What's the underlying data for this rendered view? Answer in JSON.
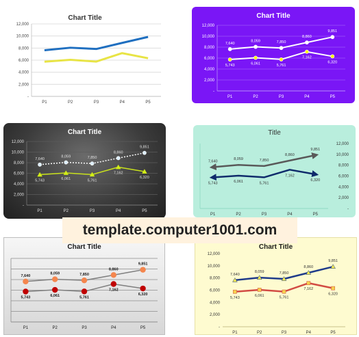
{
  "watermark": "template.computer1001.com",
  "chart_data": [
    {
      "type": "line",
      "title": "Chart Title",
      "categories": [
        "P1",
        "P2",
        "P3",
        "P4",
        "P5"
      ],
      "series": [
        {
          "values": [
            7640,
            8059,
            7850,
            8860,
            9851
          ],
          "color": "#1f6fc0"
        },
        {
          "values": [
            5743,
            6061,
            5761,
            7162,
            6320
          ],
          "color": "#e8e445"
        }
      ],
      "ylim": [
        0,
        12000
      ],
      "yticks": [
        "-",
        "2,000",
        "4,000",
        "6,000",
        "8,000",
        "10,000",
        "12,000"
      ],
      "grid": true,
      "data_labels": false,
      "markers": false,
      "theme": {
        "bg": "#ffffff",
        "text": "#404040",
        "title": "#333333",
        "grid": "#d9d9d9",
        "axis": "#bfbfbf"
      }
    },
    {
      "type": "line",
      "title": "Chart Title",
      "categories": [
        "P1",
        "P2",
        "P3",
        "P4",
        "P5"
      ],
      "series": [
        {
          "values": [
            7640,
            8059,
            7850,
            8860,
            9851
          ],
          "color": "#ffffff",
          "marker_fill": "#ffffff",
          "marker": "circle"
        },
        {
          "values": [
            5743,
            6061,
            5761,
            7162,
            6320
          ],
          "color": "#ffffff",
          "marker_fill": "#ffff00",
          "marker": "circle"
        }
      ],
      "ylim": [
        0,
        12000
      ],
      "yticks": [
        "-",
        "2,000",
        "4,000",
        "6,000",
        "8,000",
        "10,000",
        "12,000"
      ],
      "grid": true,
      "data_labels": true,
      "theme": {
        "bg": "#7a16f6",
        "text": "#ffffff",
        "title": "#ffffff",
        "grid": "#9a55f8",
        "axis": "#b58cf9"
      }
    },
    {
      "type": "line",
      "title": "Chart Title",
      "categories": [
        "P1",
        "P2",
        "P3",
        "P4",
        "P5"
      ],
      "series": [
        {
          "values": [
            7640,
            8059,
            7850,
            8860,
            9851
          ],
          "color": "#ffffff",
          "dashed": true,
          "marker_fill": "#dbeeff",
          "marker": "circle"
        },
        {
          "values": [
            5743,
            6061,
            5761,
            7162,
            6320
          ],
          "color": "#c9e21c",
          "marker_fill": "#d4ef16",
          "marker": "triangle"
        }
      ],
      "ylim": [
        0,
        12000
      ],
      "yticks": [
        "-",
        "2,000",
        "4,000",
        "6,000",
        "8,000",
        "10,000",
        "12,000"
      ],
      "grid": true,
      "data_labels": true,
      "theme": {
        "bg": "#3c3c3c",
        "text": "#e0e0e0",
        "title": "#ffffff",
        "grid": "#5c5c5c",
        "axis": "#777777"
      }
    },
    {
      "type": "line",
      "title": "Title",
      "categories": [
        "P1",
        "P2",
        "P3",
        "P4",
        "P5"
      ],
      "series": [
        {
          "values": [
            7640,
            8059,
            7850,
            8860,
            9851
          ],
          "color": "#595959",
          "arrows": true
        },
        {
          "values": [
            5743,
            6061,
            5761,
            7162,
            6320
          ],
          "color": "#0f2b6b",
          "arrows": true
        }
      ],
      "ylim": [
        0,
        12000
      ],
      "yticks": [
        "-",
        "2,000",
        "4,000",
        "6,000",
        "8,000",
        "10,000",
        "12,000"
      ],
      "y_axis_side": "right",
      "grid": false,
      "data_labels": true,
      "theme": {
        "bg": "#b9eedd",
        "text": "#333333",
        "title": "#333333",
        "grid": "#8fd9c2",
        "axis": "#8fd9c2"
      }
    },
    {
      "type": "line",
      "title": "Chart Title",
      "categories": [
        "P1",
        "P2",
        "P3",
        "P4",
        "P5"
      ],
      "series": [
        {
          "values": [
            7640,
            8059,
            7850,
            8860,
            9851
          ],
          "color": "#7f7f7f",
          "marker_fill": "#f4864e",
          "marker": "circle-large"
        },
        {
          "values": [
            5743,
            6061,
            5761,
            7162,
            6320
          ],
          "color": "#7f7f7f",
          "marker_fill": "#c00000",
          "marker": "circle-large"
        }
      ],
      "ylim": [
        0,
        12000
      ],
      "grid": true,
      "y_axis_labels": false,
      "data_labels": true,
      "bold_labels": true,
      "theme": {
        "bg": "#e5e5e5",
        "text": "#1a1a1a",
        "title": "#1a1a1a",
        "grid": "#8c8c8c",
        "axis": "#8c8c8c"
      }
    },
    {
      "type": "line",
      "title": "Chart Title",
      "categories": [
        "P1",
        "P2",
        "P3",
        "P4",
        "P5"
      ],
      "series": [
        {
          "values": [
            7640,
            8059,
            7850,
            8860,
            9851
          ],
          "color": "#1f3b8a",
          "marker_fill": "#f2ea52",
          "marker": "triangle"
        },
        {
          "values": [
            5743,
            6061,
            5761,
            7162,
            6320
          ],
          "color": "#d24b43",
          "marker_fill": "#f6d04d",
          "marker": "square"
        }
      ],
      "ylim": [
        0,
        12000
      ],
      "yticks": [
        "-",
        "2,000",
        "4,000",
        "6,000",
        "8,000",
        "10,000",
        "12,000"
      ],
      "grid": false,
      "data_labels": true,
      "theme": {
        "bg": "#fefbd0",
        "text": "#333333",
        "title": "#1a1a1a",
        "grid": "#d6cf9a",
        "axis": "#c8c08a"
      }
    }
  ]
}
